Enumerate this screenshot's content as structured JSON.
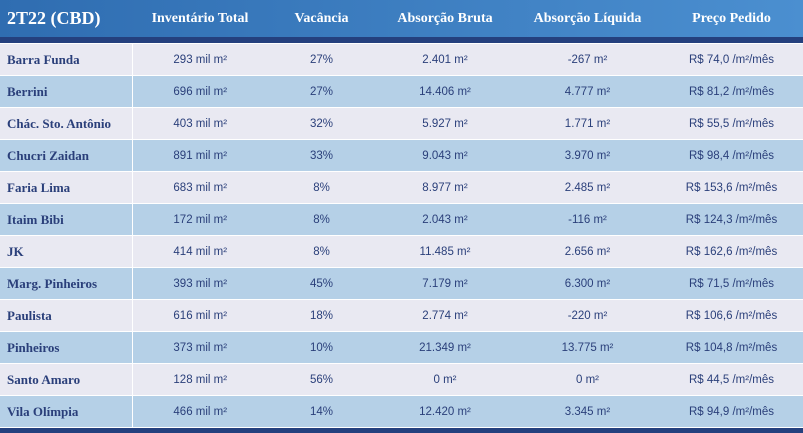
{
  "header": {
    "title": "2T22 (CBD)",
    "columns": [
      "Inventário Total",
      "Vacância",
      "Absorção Bruta",
      "Absorção Líquida",
      "Preço Pedido"
    ]
  },
  "table": {
    "rows": [
      [
        "Barra Funda",
        "293 mil m²",
        "27%",
        "2.401 m²",
        "-267 m²",
        "R$ 74,0 /m²/mês"
      ],
      [
        "Berrini",
        "696 mil m²",
        "27%",
        "14.406 m²",
        "4.777 m²",
        "R$ 81,2 /m²/mês"
      ],
      [
        "Chác. Sto. Antônio",
        "403 mil m²",
        "32%",
        "5.927 m²",
        "1.771 m²",
        "R$ 55,5 /m²/mês"
      ],
      [
        "Chucri Zaidan",
        "891 mil m²",
        "33%",
        "9.043 m²",
        "3.970 m²",
        "R$ 98,4 /m²/mês"
      ],
      [
        "Faria Lima",
        "683 mil m²",
        "8%",
        "8.977 m²",
        "2.485 m²",
        "R$ 153,6 /m²/mês"
      ],
      [
        "Itaim Bibi",
        "172 mil m²",
        "8%",
        "2.043 m²",
        "-116 m²",
        "R$ 124,3 /m²/mês"
      ],
      [
        "JK",
        "414 mil m²",
        "8%",
        "11.485 m²",
        "2.656 m²",
        "R$ 162,6 /m²/mês"
      ],
      [
        "Marg. Pinheiros",
        "393 mil m²",
        "45%",
        "7.179 m²",
        "6.300 m²",
        "R$ 71,5 /m²/mês"
      ],
      [
        "Paulista",
        "616 mil m²",
        "18%",
        "2.774 m²",
        "-220 m²",
        "R$ 106,6 /m²/mês"
      ],
      [
        "Pinheiros",
        "373 mil m²",
        "10%",
        "21.349 m²",
        "13.775 m²",
        "R$ 104,8 /m²/mês"
      ],
      [
        "Santo Amaro",
        "128 mil m²",
        "56%",
        "0 m²",
        "0 m²",
        "R$ 44,5 /m²/mês"
      ],
      [
        "Vila Olímpia",
        "466 mil m²",
        "14%",
        "12.420 m²",
        "3.345 m²",
        "R$ 94,9 /m²/mês"
      ]
    ]
  }
}
